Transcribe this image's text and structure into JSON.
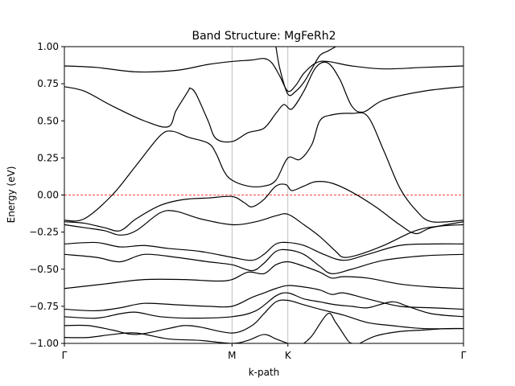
{
  "chart_data": {
    "type": "line",
    "title": "Band Structure: MgFeRh2",
    "xlabel": "k-path",
    "ylabel": "Energy (eV)",
    "ylim": [
      -1.0,
      1.0
    ],
    "xlim": [
      0,
      1
    ],
    "yticks": [
      -1.0,
      -0.75,
      -0.5,
      -0.25,
      0.0,
      0.25,
      0.5,
      0.75,
      1.0
    ],
    "ytick_labels": [
      "−1.00",
      "−0.75",
      "−0.50",
      "−0.25",
      "0.00",
      "0.25",
      "0.50",
      "0.75",
      "1.00"
    ],
    "kpoints": [
      {
        "label": "Γ",
        "x": 0.0
      },
      {
        "label": "M",
        "x": 0.42
      },
      {
        "label": "K",
        "x": 0.56
      },
      {
        "label": "Γ",
        "x": 1.0
      }
    ],
    "fermi_level": 0.0,
    "colors": {
      "bands": "#000000",
      "fermi": "#ff0000",
      "kline": "#b0b0b0"
    },
    "series": [
      {
        "values": [
          [
            0,
            0.87
          ],
          [
            0.08,
            0.86
          ],
          [
            0.18,
            0.83
          ],
          [
            0.28,
            0.84
          ],
          [
            0.36,
            0.88
          ],
          [
            0.42,
            0.9
          ],
          [
            0.47,
            0.91
          ],
          [
            0.5,
            0.92
          ],
          [
            0.52,
            0.89
          ],
          [
            0.54,
            0.8
          ],
          [
            0.56,
            0.7
          ],
          [
            0.58,
            0.74
          ],
          [
            0.6,
            0.82
          ],
          [
            0.63,
            0.89
          ],
          [
            0.66,
            0.9
          ],
          [
            0.72,
            0.87
          ],
          [
            0.8,
            0.85
          ],
          [
            0.9,
            0.86
          ],
          [
            1.0,
            0.87
          ]
        ]
      },
      {
        "values": [
          [
            0,
            0.73
          ],
          [
            0.05,
            0.7
          ],
          [
            0.12,
            0.6
          ],
          [
            0.2,
            0.5
          ],
          [
            0.26,
            0.46
          ],
          [
            0.28,
            0.57
          ],
          [
            0.31,
            0.7
          ],
          [
            0.315,
            0.72
          ],
          [
            0.33,
            0.68
          ],
          [
            0.36,
            0.5
          ],
          [
            0.38,
            0.38
          ],
          [
            0.42,
            0.36
          ],
          [
            0.46,
            0.42
          ],
          [
            0.5,
            0.45
          ],
          [
            0.53,
            0.55
          ],
          [
            0.55,
            0.61
          ],
          [
            0.57,
            0.58
          ],
          [
            0.6,
            0.7
          ],
          [
            0.63,
            0.86
          ],
          [
            0.66,
            0.89
          ],
          [
            0.69,
            0.78
          ],
          [
            0.72,
            0.6
          ],
          [
            0.75,
            0.56
          ],
          [
            0.8,
            0.64
          ],
          [
            0.9,
            0.7
          ],
          [
            1.0,
            0.73
          ]
        ]
      },
      {
        "values": [
          [
            0,
            -0.17
          ],
          [
            0.05,
            -0.16
          ],
          [
            0.12,
            0.0
          ],
          [
            0.18,
            0.2
          ],
          [
            0.24,
            0.4
          ],
          [
            0.27,
            0.43
          ],
          [
            0.31,
            0.39
          ],
          [
            0.36,
            0.35
          ],
          [
            0.38,
            0.28
          ],
          [
            0.4,
            0.16
          ],
          [
            0.42,
            0.1
          ],
          [
            0.46,
            0.06
          ],
          [
            0.5,
            0.06
          ],
          [
            0.53,
            0.1
          ],
          [
            0.56,
            0.25
          ],
          [
            0.59,
            0.24
          ],
          [
            0.62,
            0.34
          ],
          [
            0.64,
            0.5
          ],
          [
            0.67,
            0.54
          ],
          [
            0.72,
            0.55
          ],
          [
            0.76,
            0.53
          ],
          [
            0.8,
            0.3
          ],
          [
            0.84,
            0.05
          ],
          [
            0.88,
            -0.1
          ],
          [
            0.92,
            -0.18
          ],
          [
            1.0,
            -0.17
          ]
        ]
      },
      {
        "values": [
          [
            0,
            -0.18
          ],
          [
            0.05,
            -0.19
          ],
          [
            0.1,
            -0.22
          ],
          [
            0.14,
            -0.24
          ],
          [
            0.18,
            -0.16
          ],
          [
            0.24,
            -0.07
          ],
          [
            0.3,
            -0.03
          ],
          [
            0.36,
            -0.02
          ],
          [
            0.42,
            -0.01
          ],
          [
            0.45,
            -0.05
          ],
          [
            0.47,
            -0.08
          ],
          [
            0.5,
            -0.03
          ],
          [
            0.53,
            0.06
          ],
          [
            0.555,
            0.07
          ],
          [
            0.57,
            0.03
          ],
          [
            0.6,
            0.06
          ],
          [
            0.63,
            0.09
          ],
          [
            0.67,
            0.08
          ],
          [
            0.72,
            0.02
          ],
          [
            0.78,
            -0.08
          ],
          [
            0.84,
            -0.2
          ],
          [
            0.88,
            -0.26
          ],
          [
            0.92,
            -0.22
          ],
          [
            1.0,
            -0.18
          ]
        ]
      },
      {
        "values": [
          [
            0,
            -0.2
          ],
          [
            0.05,
            -0.22
          ],
          [
            0.1,
            -0.24
          ],
          [
            0.14,
            -0.27
          ],
          [
            0.18,
            -0.24
          ],
          [
            0.24,
            -0.12
          ],
          [
            0.28,
            -0.11
          ],
          [
            0.34,
            -0.16
          ],
          [
            0.42,
            -0.2
          ],
          [
            0.48,
            -0.18
          ],
          [
            0.53,
            -0.14
          ],
          [
            0.56,
            -0.13
          ],
          [
            0.6,
            -0.2
          ],
          [
            0.64,
            -0.28
          ],
          [
            0.68,
            -0.38
          ],
          [
            0.7,
            -0.42
          ],
          [
            0.74,
            -0.4
          ],
          [
            0.8,
            -0.34
          ],
          [
            0.88,
            -0.24
          ],
          [
            0.94,
            -0.21
          ],
          [
            1.0,
            -0.2
          ]
        ]
      },
      {
        "values": [
          [
            0,
            -0.33
          ],
          [
            0.08,
            -0.32
          ],
          [
            0.14,
            -0.35
          ],
          [
            0.2,
            -0.34
          ],
          [
            0.26,
            -0.36
          ],
          [
            0.34,
            -0.38
          ],
          [
            0.42,
            -0.42
          ],
          [
            0.47,
            -0.44
          ],
          [
            0.5,
            -0.4
          ],
          [
            0.53,
            -0.33
          ],
          [
            0.56,
            -0.32
          ],
          [
            0.6,
            -0.34
          ],
          [
            0.65,
            -0.4
          ],
          [
            0.7,
            -0.44
          ],
          [
            0.76,
            -0.4
          ],
          [
            0.84,
            -0.34
          ],
          [
            0.92,
            -0.33
          ],
          [
            1.0,
            -0.33
          ]
        ]
      },
      {
        "values": [
          [
            0,
            -0.4
          ],
          [
            0.08,
            -0.42
          ],
          [
            0.14,
            -0.45
          ],
          [
            0.2,
            -0.4
          ],
          [
            0.28,
            -0.42
          ],
          [
            0.36,
            -0.45
          ],
          [
            0.42,
            -0.47
          ],
          [
            0.47,
            -0.51
          ],
          [
            0.5,
            -0.46
          ],
          [
            0.53,
            -0.38
          ],
          [
            0.56,
            -0.37
          ],
          [
            0.6,
            -0.4
          ],
          [
            0.64,
            -0.48
          ],
          [
            0.67,
            -0.53
          ],
          [
            0.72,
            -0.5
          ],
          [
            0.8,
            -0.44
          ],
          [
            0.9,
            -0.41
          ],
          [
            1.0,
            -0.4
          ]
        ]
      },
      {
        "values": [
          [
            0,
            -0.63
          ],
          [
            0.1,
            -0.6
          ],
          [
            0.2,
            -0.57
          ],
          [
            0.3,
            -0.57
          ],
          [
            0.38,
            -0.58
          ],
          [
            0.42,
            -0.57
          ],
          [
            0.46,
            -0.52
          ],
          [
            0.5,
            -0.53
          ],
          [
            0.53,
            -0.47
          ],
          [
            0.56,
            -0.45
          ],
          [
            0.6,
            -0.48
          ],
          [
            0.64,
            -0.52
          ],
          [
            0.67,
            -0.56
          ],
          [
            0.7,
            -0.55
          ],
          [
            0.76,
            -0.56
          ],
          [
            0.84,
            -0.6
          ],
          [
            0.92,
            -0.62
          ],
          [
            1.0,
            -0.63
          ]
        ]
      },
      {
        "values": [
          [
            0,
            -0.77
          ],
          [
            0.08,
            -0.78
          ],
          [
            0.14,
            -0.76
          ],
          [
            0.2,
            -0.73
          ],
          [
            0.28,
            -0.74
          ],
          [
            0.36,
            -0.75
          ],
          [
            0.42,
            -0.75
          ],
          [
            0.47,
            -0.69
          ],
          [
            0.5,
            -0.66
          ],
          [
            0.53,
            -0.63
          ],
          [
            0.56,
            -0.61
          ],
          [
            0.6,
            -0.62
          ],
          [
            0.64,
            -0.64
          ],
          [
            0.67,
            -0.67
          ],
          [
            0.7,
            -0.66
          ],
          [
            0.76,
            -0.7
          ],
          [
            0.84,
            -0.75
          ],
          [
            0.92,
            -0.76
          ],
          [
            1.0,
            -0.77
          ]
        ]
      },
      {
        "values": [
          [
            0,
            -0.82
          ],
          [
            0.08,
            -0.83
          ],
          [
            0.14,
            -0.8
          ],
          [
            0.18,
            -0.79
          ],
          [
            0.24,
            -0.82
          ],
          [
            0.32,
            -0.83
          ],
          [
            0.42,
            -0.82
          ],
          [
            0.48,
            -0.78
          ],
          [
            0.53,
            -0.68
          ],
          [
            0.56,
            -0.66
          ],
          [
            0.6,
            -0.7
          ],
          [
            0.64,
            -0.72
          ],
          [
            0.68,
            -0.74
          ],
          [
            0.72,
            -0.75
          ],
          [
            0.76,
            -0.76
          ],
          [
            0.82,
            -0.72
          ],
          [
            0.86,
            -0.75
          ],
          [
            0.92,
            -0.8
          ],
          [
            1.0,
            -0.82
          ]
        ]
      },
      {
        "values": [
          [
            0,
            -0.88
          ],
          [
            0.06,
            -0.88
          ],
          [
            0.12,
            -0.91
          ],
          [
            0.18,
            -0.94
          ],
          [
            0.26,
            -0.9
          ],
          [
            0.3,
            -0.88
          ],
          [
            0.34,
            -0.89
          ],
          [
            0.42,
            -0.93
          ],
          [
            0.47,
            -0.88
          ],
          [
            0.5,
            -0.8
          ],
          [
            0.53,
            -0.72
          ],
          [
            0.56,
            -0.71
          ],
          [
            0.6,
            -0.74
          ],
          [
            0.64,
            -0.77
          ],
          [
            0.7,
            -0.81
          ],
          [
            0.76,
            -0.86
          ],
          [
            0.82,
            -0.88
          ],
          [
            0.9,
            -0.9
          ],
          [
            1.0,
            -0.9
          ]
        ]
      },
      {
        "values": [
          [
            0,
            -0.96
          ],
          [
            0.06,
            -0.96
          ],
          [
            0.12,
            -0.94
          ],
          [
            0.18,
            -0.93
          ],
          [
            0.26,
            -0.97
          ],
          [
            0.34,
            -0.98
          ],
          [
            0.42,
            -1.0
          ],
          [
            0.46,
            -0.98
          ],
          [
            0.5,
            -0.94
          ],
          [
            0.53,
            -0.97
          ],
          [
            0.56,
            -1.0
          ]
        ]
      },
      {
        "values": [
          [
            0.6,
            -1.0
          ],
          [
            0.62,
            -0.95
          ],
          [
            0.66,
            -0.8
          ],
          [
            0.68,
            -0.86
          ],
          [
            0.71,
            -0.98
          ],
          [
            0.72,
            -1.0
          ]
        ]
      },
      {
        "values": [
          [
            0.74,
            -1.0
          ],
          [
            0.78,
            -0.95
          ],
          [
            0.84,
            -0.92
          ],
          [
            0.9,
            -0.91
          ],
          [
            0.96,
            -0.9
          ],
          [
            1.0,
            -0.9
          ]
        ]
      },
      {
        "values": [
          [
            0.53,
            1.0
          ],
          [
            0.54,
            0.85
          ],
          [
            0.56,
            0.68
          ],
          [
            0.58,
            0.7
          ],
          [
            0.6,
            0.76
          ],
          [
            0.62,
            0.85
          ],
          [
            0.64,
            0.94
          ],
          [
            0.66,
            0.97
          ],
          [
            0.68,
            1.0
          ]
        ]
      }
    ]
  }
}
